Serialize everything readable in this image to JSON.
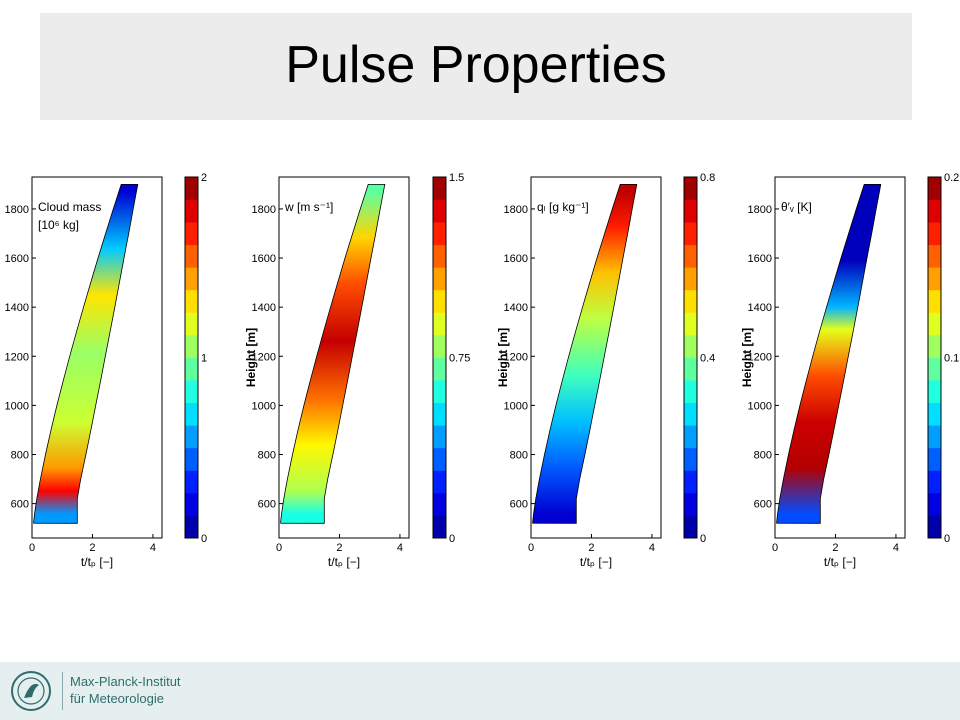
{
  "slide": {
    "title": "Pulse Properties"
  },
  "footer": {
    "line1": "Max-Planck-Institut",
    "line2": "für Meteorologie"
  },
  "colors": {
    "title_bg": "#ececec",
    "footer_bg": "#e6efef",
    "footer_text": "#2f6d6d"
  },
  "chart_data": [
    {
      "type": "heatmap",
      "annotation": "Cloud mass",
      "annotation_unit": "[10⁶ kg]",
      "xlabel": "t/tₚ [−]",
      "ylabel": "",
      "xlim": [
        0,
        4.3
      ],
      "ylim": [
        460,
        1930
      ],
      "xticks": [
        "0",
        "2",
        "4"
      ],
      "yticks": [
        "600",
        "800",
        "1000",
        "1200",
        "1400",
        "1600",
        "1800"
      ],
      "colorbar": {
        "min": 0,
        "max": 2,
        "labels": [
          "0",
          "1",
          "2"
        ]
      },
      "fill": [
        {
          "h": 500,
          "color_value": 0.55
        },
        {
          "h": 600,
          "color_value": 1.75
        },
        {
          "h": 700,
          "color_value": 1.45
        },
        {
          "h": 900,
          "color_value": 1.15
        },
        {
          "h": 1200,
          "color_value": 1.05
        },
        {
          "h": 1450,
          "color_value": 1.3
        },
        {
          "h": 1650,
          "color_value": 0.65
        },
        {
          "h": 1900,
          "color_value": 0.15
        }
      ]
    },
    {
      "type": "heatmap",
      "annotation": "w [m s⁻¹]",
      "annotation_unit": "",
      "xlabel": "t/tₚ [−]",
      "ylabel": "Height [m]",
      "xlim": [
        0,
        4.3
      ],
      "ylim": [
        460,
        1930
      ],
      "xticks": [
        "0",
        "2",
        "4"
      ],
      "yticks": [
        "600",
        "800",
        "1000",
        "1200",
        "1400",
        "1600",
        "1800"
      ],
      "colorbar": {
        "min": 0,
        "max": 1.5,
        "labels": [
          "0",
          "0.75",
          "1.5"
        ]
      },
      "fill": [
        {
          "h": 500,
          "color_value": 0.6
        },
        {
          "h": 600,
          "color_value": 0.82
        },
        {
          "h": 800,
          "color_value": 0.95
        },
        {
          "h": 1000,
          "color_value": 1.15
        },
        {
          "h": 1250,
          "color_value": 1.4
        },
        {
          "h": 1500,
          "color_value": 1.2
        },
        {
          "h": 1700,
          "color_value": 1.0
        },
        {
          "h": 1900,
          "color_value": 0.7
        }
      ]
    },
    {
      "type": "heatmap",
      "annotation": "qₗ [g kg⁻¹]",
      "annotation_unit": "",
      "xlabel": "t/tₚ [−]",
      "ylabel": "Height [m]",
      "xlim": [
        0,
        4.3
      ],
      "ylim": [
        460,
        1930
      ],
      "xticks": [
        "0",
        "2",
        "4"
      ],
      "yticks": [
        "600",
        "800",
        "1000",
        "1200",
        "1400",
        "1600",
        "1800"
      ],
      "colorbar": {
        "min": 0,
        "max": 0.8,
        "labels": [
          "0",
          "0.4",
          "0.8"
        ]
      },
      "fill": [
        {
          "h": 500,
          "color_value": 0.06
        },
        {
          "h": 700,
          "color_value": 0.17
        },
        {
          "h": 900,
          "color_value": 0.25
        },
        {
          "h": 1100,
          "color_value": 0.35
        },
        {
          "h": 1350,
          "color_value": 0.45
        },
        {
          "h": 1550,
          "color_value": 0.55
        },
        {
          "h": 1750,
          "color_value": 0.68
        },
        {
          "h": 1900,
          "color_value": 0.75
        }
      ]
    },
    {
      "type": "heatmap",
      "annotation": "θ′ᵥ [K]",
      "annotation_unit": "",
      "xlabel": "t/tₚ [−]",
      "ylabel": "Height [m]",
      "xlim": [
        0,
        4.3
      ],
      "ylim": [
        460,
        1930
      ],
      "xticks": [
        "0",
        "2",
        "4"
      ],
      "yticks": [
        "600",
        "800",
        "1000",
        "1200",
        "1400",
        "1600",
        "1800"
      ],
      "colorbar": {
        "min": 0,
        "max": 0.2,
        "labels": [
          "0",
          "0.1",
          "0.2"
        ]
      },
      "fill": [
        {
          "h": 500,
          "color_value": 0.04
        },
        {
          "h": 700,
          "color_value": 0.19
        },
        {
          "h": 900,
          "color_value": 0.185
        },
        {
          "h": 1100,
          "color_value": 0.16
        },
        {
          "h": 1300,
          "color_value": 0.12
        },
        {
          "h": 1400,
          "color_value": 0.06
        },
        {
          "h": 1600,
          "color_value": 0.01
        },
        {
          "h": 1900,
          "color_value": 0.01
        }
      ]
    }
  ]
}
